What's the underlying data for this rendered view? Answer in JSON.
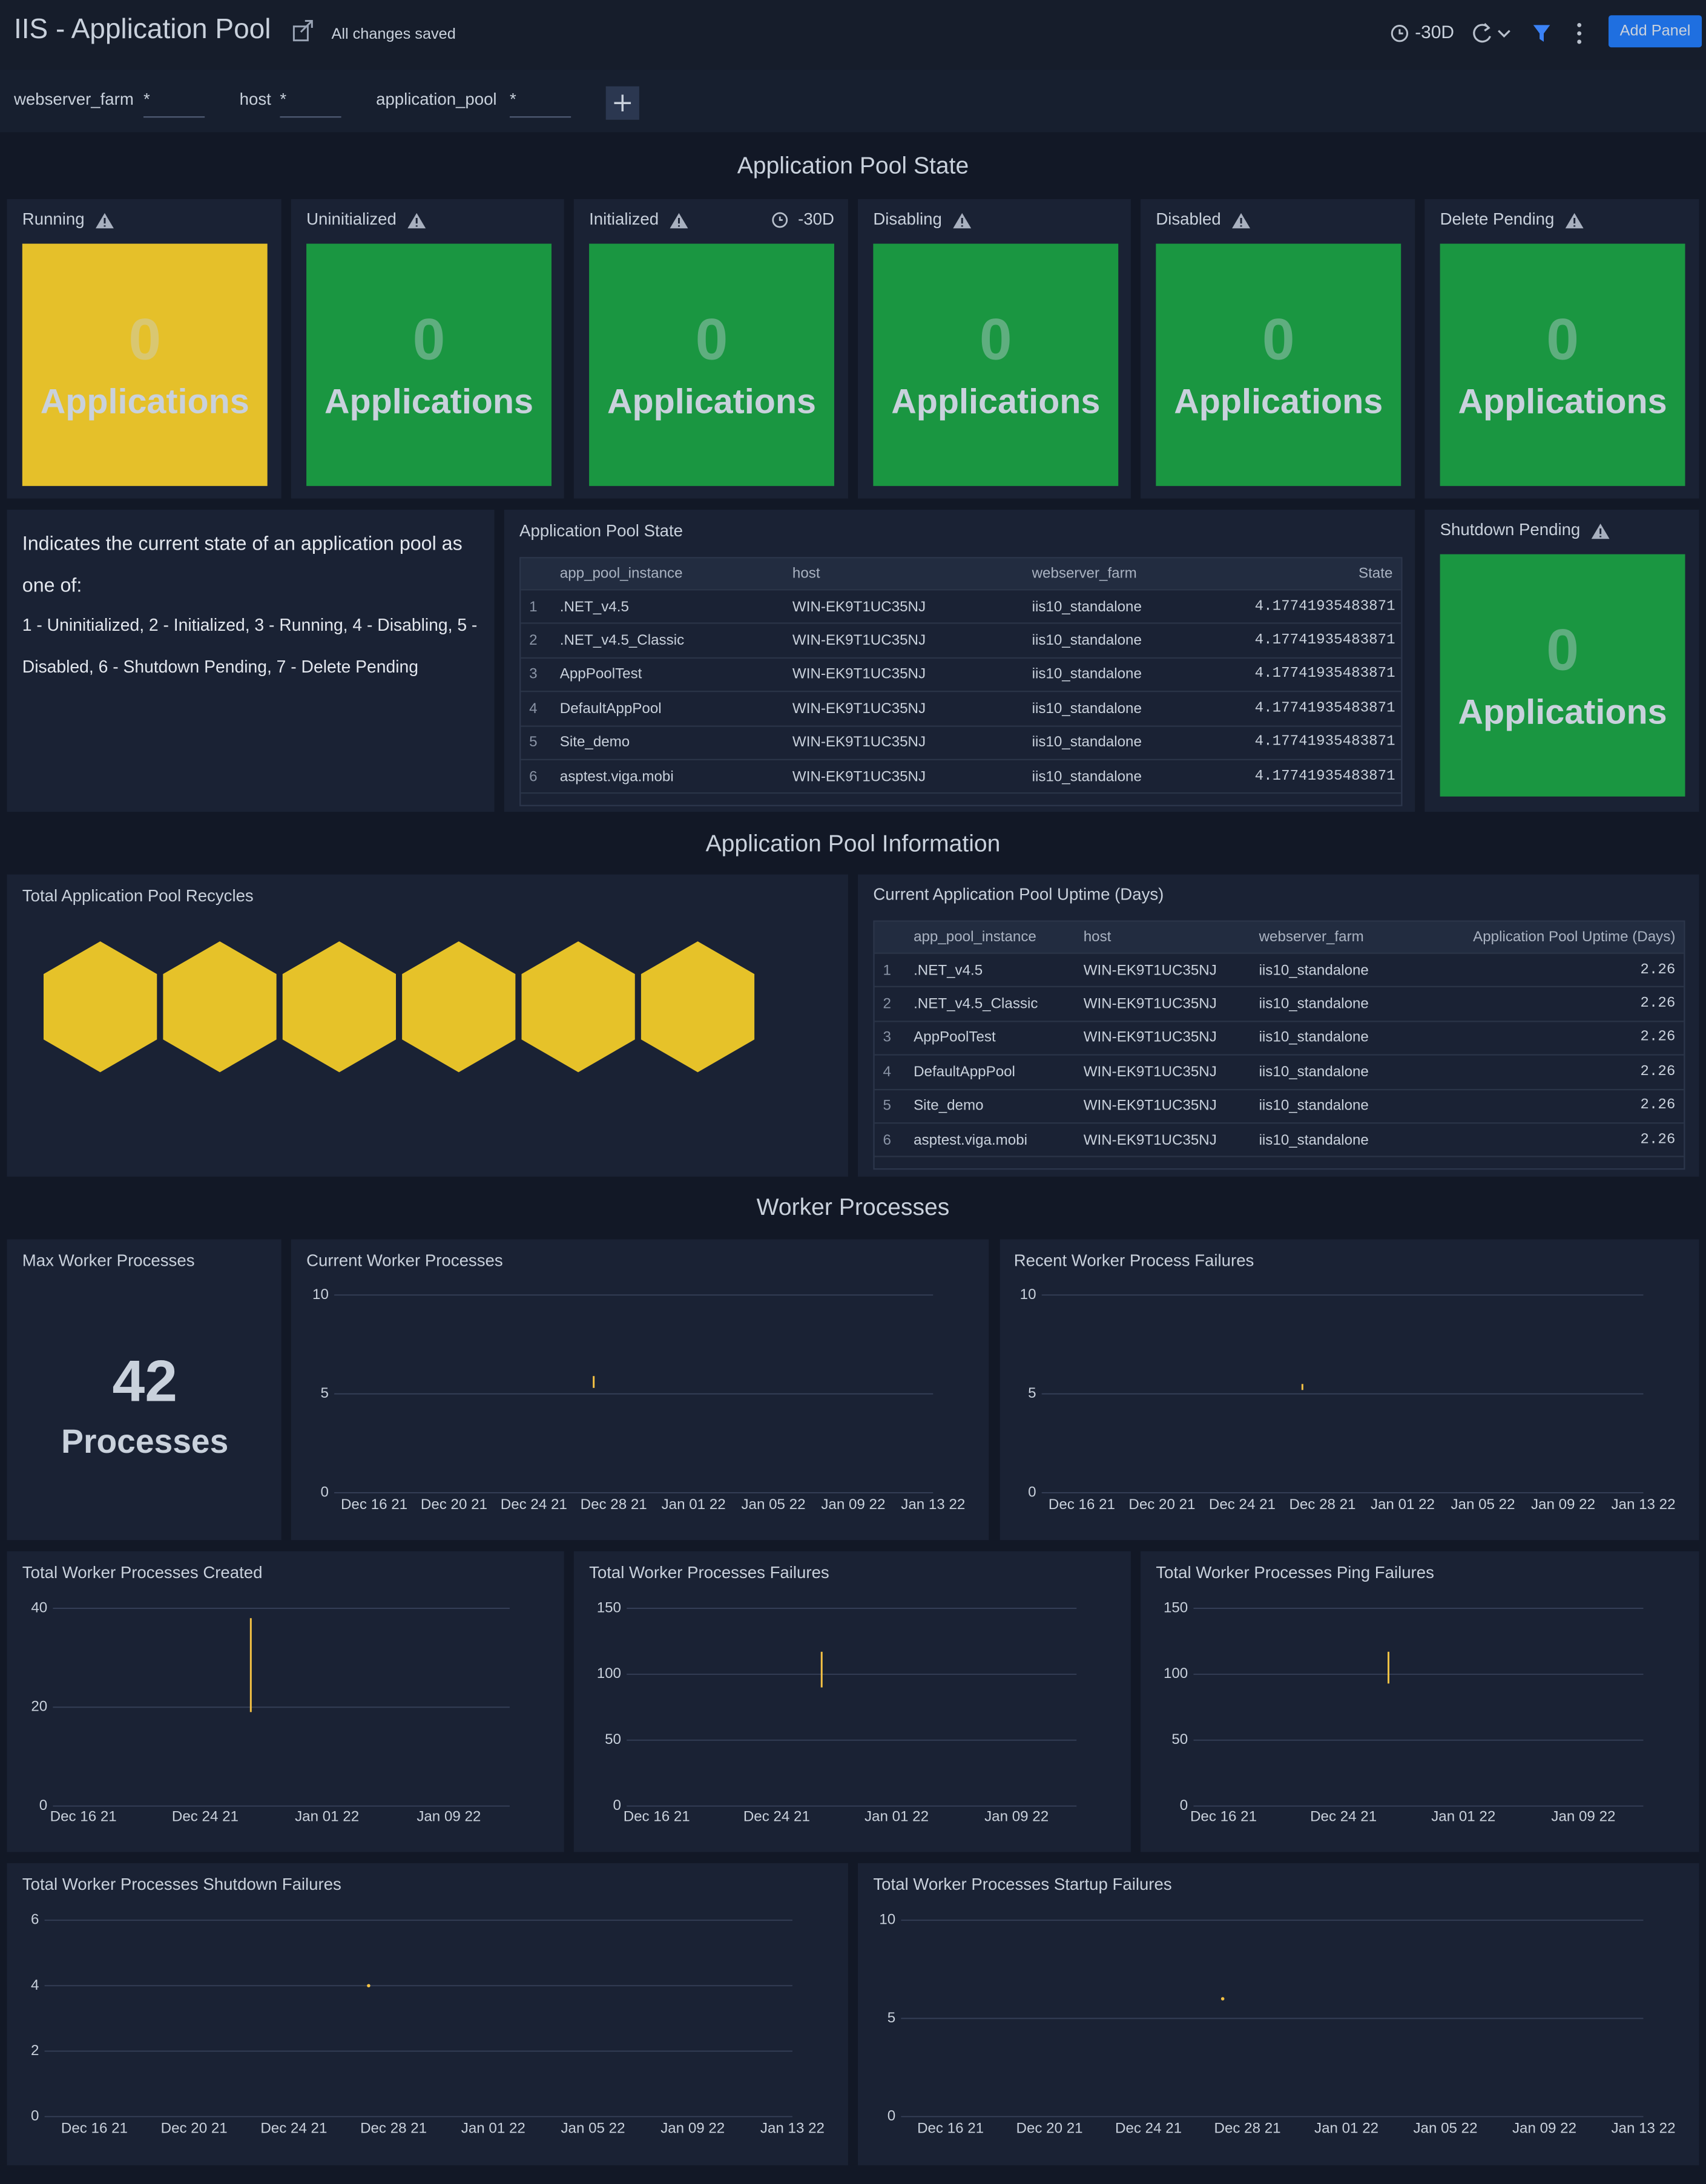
{
  "header": {
    "title": "IIS - Application Pool",
    "status": "All changes saved",
    "time_range": "-30D",
    "button": "Add Panel"
  },
  "filters": [
    {
      "name": "webserver_farm",
      "value": "*"
    },
    {
      "name": "host",
      "value": "*"
    },
    {
      "name": "application_pool",
      "value": "*"
    }
  ],
  "sections": [
    {
      "title": "Application Pool State",
      "tiles": [
        {
          "title": "Running",
          "value": 0,
          "unit": "Applications",
          "color": "#e5c02a"
        },
        {
          "title": "Uninitialized",
          "value": 0,
          "unit": "Applications",
          "color": "#1a9641"
        },
        {
          "title": "Initialized",
          "value": 0,
          "unit": "Applications",
          "color": "#1a9641",
          "time_range": "-30D"
        },
        {
          "title": "Disabling",
          "value": 0,
          "unit": "Applications",
          "color": "#1a9641"
        },
        {
          "title": "Disabled",
          "value": 0,
          "unit": "Applications",
          "color": "#1a9641"
        },
        {
          "title": "Delete Pending",
          "value": 0,
          "unit": "Applications",
          "color": "#1a9641"
        },
        {
          "title": "Shutdown Pending",
          "value": 0,
          "unit": "Applications",
          "color": "#1a9641"
        }
      ],
      "description": [
        "Indicates the current state of an application pool as one of:",
        "1 - Uninitialized, 2 - Initialized, 3 - Running, 4 - Disabling, 5 - Disabled, 6 - Shutdown Pending, 7 - Delete Pending"
      ],
      "table": {
        "title": "Application Pool State",
        "columns": [
          "app_pool_instance",
          "host",
          "webserver_farm",
          "State"
        ],
        "rows": [
          [
            1,
            ".NET_v4.5",
            "WIN-EK9T1UC35NJ",
            "iis10_standalone",
            4.17741935483871
          ],
          [
            2,
            ".NET_v4.5_Classic",
            "WIN-EK9T1UC35NJ",
            "iis10_standalone",
            4.17741935483871
          ],
          [
            3,
            "AppPoolTest",
            "WIN-EK9T1UC35NJ",
            "iis10_standalone",
            4.17741935483871
          ],
          [
            4,
            "DefaultAppPool",
            "WIN-EK9T1UC35NJ",
            "iis10_standalone",
            4.17741935483871
          ],
          [
            5,
            "Site_demo",
            "WIN-EK9T1UC35NJ",
            "iis10_standalone",
            4.17741935483871
          ],
          [
            6,
            "asptest.viga.mobi",
            "WIN-EK9T1UC35NJ",
            "iis10_standalone",
            4.17741935483871
          ]
        ]
      }
    },
    {
      "title": "Application Pool Information",
      "recycles": {
        "title": "Total Application Pool Recycles",
        "color": "#e6c229"
      },
      "table": {
        "title": "Current Application Pool Uptime (Days)",
        "columns": [
          "app_pool_instance",
          "host",
          "webserver_farm",
          "Application Pool Uptime (Days)"
        ],
        "rows": [
          [
            1,
            ".NET_v4.5",
            "WIN-EK9T1UC35NJ",
            "iis10_standalone",
            2.26
          ],
          [
            2,
            ".NET_v4.5_Classic",
            "WIN-EK9T1UC35NJ",
            "iis10_standalone",
            2.26
          ],
          [
            3,
            "AppPoolTest",
            "WIN-EK9T1UC35NJ",
            "iis10_standalone",
            2.26
          ],
          [
            4,
            "DefaultAppPool",
            "WIN-EK9T1UC35NJ",
            "iis10_standalone",
            2.26
          ],
          [
            5,
            "Site_demo",
            "WIN-EK9T1UC35NJ",
            "iis10_standalone",
            2.26
          ],
          [
            6,
            "asptest.viga.mobi",
            "WIN-EK9T1UC35NJ",
            "iis10_standalone",
            2.26
          ]
        ]
      }
    },
    {
      "title": "Worker Processes",
      "stat": {
        "title": "Max Worker Processes",
        "value": 42,
        "unit": "Processes"
      },
      "charts": [
        {
          "type": "line",
          "title": "Current Worker Processes",
          "ylim": [
            0,
            10
          ],
          "yticks": [
            0,
            5,
            10
          ],
          "xlim": [
            "Dec 14 21",
            "Jan 13 22"
          ],
          "xticks": [
            "Dec 16 21",
            "Dec 20 21",
            "Dec 24 21",
            "Dec 28 21",
            "Jan 01 22",
            "Jan 05 22",
            "Jan 09 22",
            "Jan 13 22"
          ],
          "series": [
            {
              "color": "#f5c244",
              "x": [
                "Dec 27 21",
                "Dec 27 21"
              ],
              "values": [
                5.3,
                5.9
              ]
            }
          ]
        },
        {
          "type": "line",
          "title": "Recent Worker Process Failures",
          "ylim": [
            0,
            10
          ],
          "yticks": [
            0,
            5,
            10
          ],
          "xlim": [
            "Dec 14 21",
            "Jan 13 22"
          ],
          "xticks": [
            "Dec 16 21",
            "Dec 20 21",
            "Dec 24 21",
            "Dec 28 21",
            "Jan 01 22",
            "Jan 05 22",
            "Jan 09 22",
            "Jan 13 22"
          ],
          "series": [
            {
              "color": "#f5c244",
              "x": [
                "Dec 27 21",
                "Dec 27 21"
              ],
              "values": [
                5.5,
                5.2
              ]
            }
          ]
        },
        {
          "type": "line",
          "title": "Total Worker Processes Created",
          "ylim": [
            0,
            40
          ],
          "yticks": [
            0,
            20,
            40
          ],
          "xlim": [
            "Dec 14 21",
            "Jan 13 22"
          ],
          "xticks": [
            "Dec 16 21",
            "Dec 24 21",
            "Jan 01 22",
            "Jan 09 22"
          ],
          "series": [
            {
              "color": "#f5c244",
              "x": [
                "Dec 27 21",
                "Dec 27 21"
              ],
              "values": [
                38,
                19
              ]
            }
          ]
        },
        {
          "type": "line",
          "title": "Total Worker Processes Failures",
          "ylim": [
            0,
            150
          ],
          "yticks": [
            0,
            50,
            100,
            150
          ],
          "xlim": [
            "Dec 14 21",
            "Jan 13 22"
          ],
          "xticks": [
            "Dec 16 21",
            "Dec 24 21",
            "Jan 01 22",
            "Jan 09 22"
          ],
          "series": [
            {
              "color": "#f5c244",
              "x": [
                "Dec 27 21",
                "Dec 27 21"
              ],
              "values": [
                117,
                90
              ]
            }
          ]
        },
        {
          "type": "line",
          "title": "Total Worker Processes Ping Failures",
          "ylim": [
            0,
            150
          ],
          "yticks": [
            0,
            50,
            100,
            150
          ],
          "xlim": [
            "Dec 14 21",
            "Jan 13 22"
          ],
          "xticks": [
            "Dec 16 21",
            "Dec 24 21",
            "Jan 01 22",
            "Jan 09 22"
          ],
          "series": [
            {
              "color": "#f5c244",
              "x": [
                "Dec 27 21",
                "Dec 27 21"
              ],
              "values": [
                117,
                93
              ]
            }
          ]
        },
        {
          "type": "line",
          "title": "Total Worker Processes Shutdown Failures",
          "ylim": [
            0,
            6
          ],
          "yticks": [
            0,
            2,
            4,
            6
          ],
          "xlim": [
            "Dec 14 21",
            "Jan 13 22"
          ],
          "xticks": [
            "Dec 16 21",
            "Dec 20 21",
            "Dec 24 21",
            "Dec 28 21",
            "Jan 01 22",
            "Jan 05 22",
            "Jan 09 22",
            "Jan 13 22"
          ],
          "series": [
            {
              "color": "#f5c244",
              "x": [
                "Dec 27 21"
              ],
              "values": [
                4
              ]
            }
          ]
        },
        {
          "type": "line",
          "title": "Total Worker Processes Startup Failures",
          "ylim": [
            0,
            10
          ],
          "yticks": [
            0,
            5,
            10
          ],
          "xlim": [
            "Dec 14 21",
            "Jan 13 22"
          ],
          "xticks": [
            "Dec 16 21",
            "Dec 20 21",
            "Dec 24 21",
            "Dec 28 21",
            "Jan 01 22",
            "Jan 05 22",
            "Jan 09 22",
            "Jan 13 22"
          ],
          "series": [
            {
              "color": "#f5c244",
              "x": [
                "Dec 27 21"
              ],
              "values": [
                6
              ]
            }
          ]
        }
      ]
    }
  ]
}
